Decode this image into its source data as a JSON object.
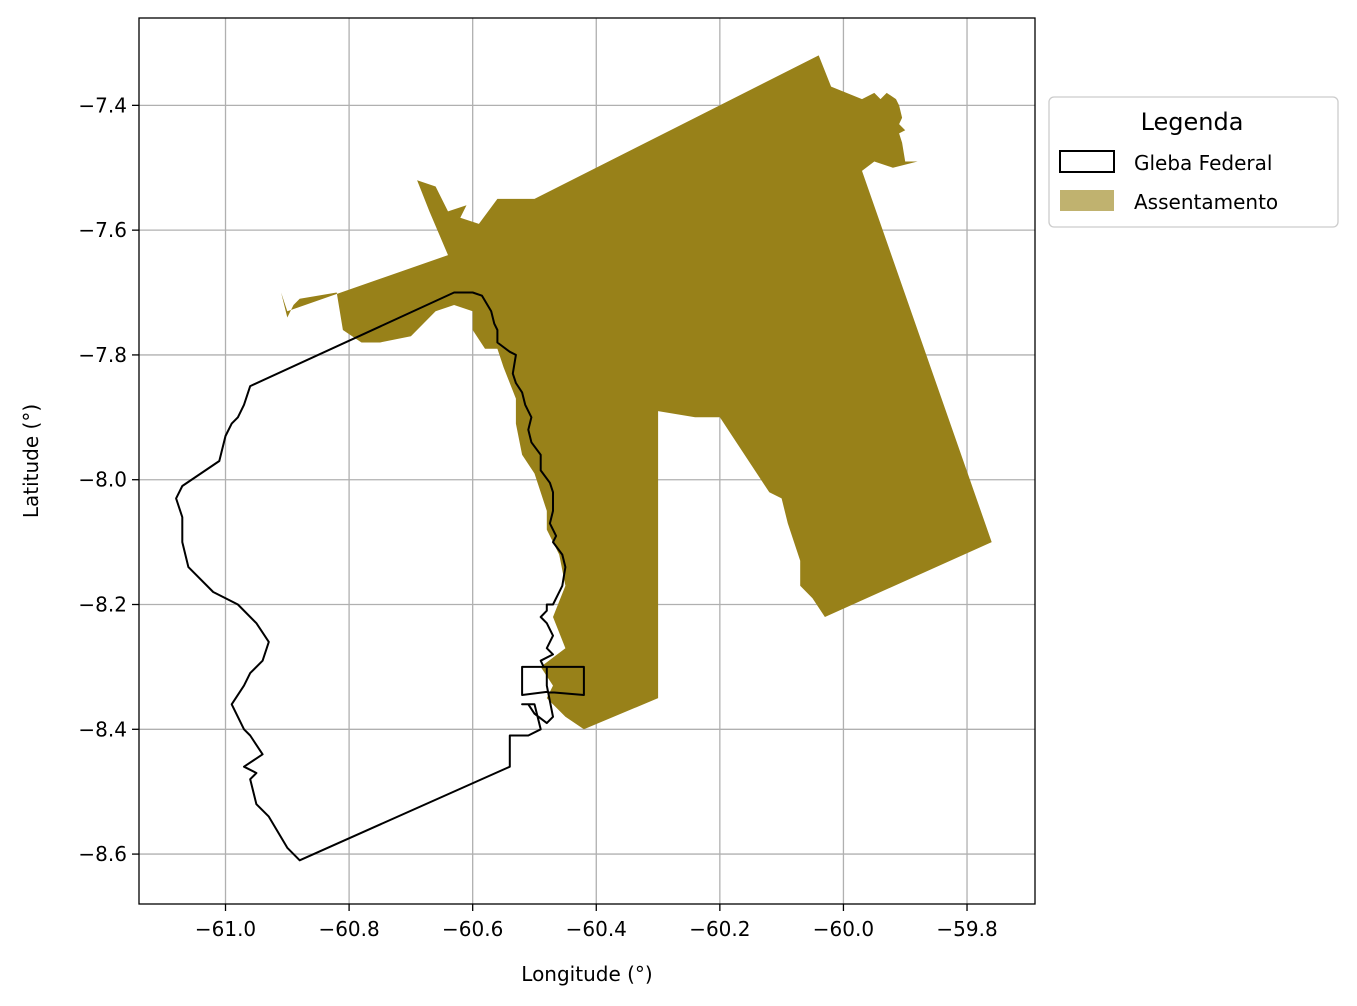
{
  "chart_data": {
    "type": "map",
    "xlabel": "Longitude (°)",
    "ylabel": "Latitude (°)",
    "xlim": [
      -61.14,
      -59.69
    ],
    "ylim": [
      -8.68,
      -7.26
    ],
    "grid": true,
    "x_ticks": [
      -61.0,
      -60.8,
      -60.6,
      -60.4,
      -60.2,
      -60.0,
      -59.8
    ],
    "y_ticks": [
      -7.4,
      -7.6,
      -7.8,
      -8.0,
      -8.2,
      -8.4,
      -8.6
    ],
    "x_tick_labels": [
      "−61.0",
      "−60.8",
      "−60.6",
      "−60.4",
      "−60.2",
      "−60.0",
      "−59.8"
    ],
    "y_tick_labels": [
      "−7.4",
      "−7.6",
      "−7.8",
      "−8.0",
      "−8.2",
      "−8.4",
      "−8.6"
    ],
    "legend": {
      "title": "Legenda",
      "placement": "outside-right-top",
      "entries": [
        {
          "label": "Gleba Federal",
          "style": "outline",
          "edge_color": "#000000",
          "fill_color": "#ffffff"
        },
        {
          "label": "Assentamento",
          "style": "fill",
          "fill_color": "#c0b26f"
        }
      ]
    },
    "series": [
      {
        "name": "Assentamento",
        "type": "polygon",
        "fill_color": "#988119",
        "coordinates": [
          [
            -60.04,
            -7.32
          ],
          [
            -60.02,
            -7.37
          ],
          [
            -59.97,
            -7.39
          ],
          [
            -59.95,
            -7.38
          ],
          [
            -59.94,
            -7.39
          ],
          [
            -59.93,
            -7.38
          ],
          [
            -59.915,
            -7.39
          ],
          [
            -59.91,
            -7.4
          ],
          [
            -59.905,
            -7.42
          ],
          [
            -59.91,
            -7.43
          ],
          [
            -59.9,
            -7.44
          ],
          [
            -59.91,
            -7.445
          ],
          [
            -59.905,
            -7.46
          ],
          [
            -59.9,
            -7.49
          ],
          [
            -59.88,
            -7.49
          ],
          [
            -59.92,
            -7.5
          ],
          [
            -59.95,
            -7.49
          ],
          [
            -59.97,
            -7.505
          ],
          [
            -59.76,
            -8.1
          ],
          [
            -60.03,
            -8.22
          ],
          [
            -60.05,
            -8.19
          ],
          [
            -60.07,
            -8.17
          ],
          [
            -60.07,
            -8.13
          ],
          [
            -60.09,
            -8.07
          ],
          [
            -60.1,
            -8.03
          ],
          [
            -60.12,
            -8.02
          ],
          [
            -60.14,
            -7.99
          ],
          [
            -60.18,
            -7.93
          ],
          [
            -60.2,
            -7.9
          ],
          [
            -60.24,
            -7.9
          ],
          [
            -60.3,
            -7.89
          ],
          [
            -60.3,
            -8.35
          ],
          [
            -60.42,
            -8.4
          ],
          [
            -60.45,
            -8.38
          ],
          [
            -60.48,
            -8.35
          ],
          [
            -60.47,
            -8.33
          ],
          [
            -60.49,
            -8.3
          ],
          [
            -60.45,
            -8.27
          ],
          [
            -60.47,
            -8.22
          ],
          [
            -60.45,
            -8.17
          ],
          [
            -60.46,
            -8.12
          ],
          [
            -60.48,
            -8.08
          ],
          [
            -60.48,
            -8.05
          ],
          [
            -60.5,
            -7.99
          ],
          [
            -60.52,
            -7.96
          ],
          [
            -60.53,
            -7.91
          ],
          [
            -60.53,
            -7.87
          ],
          [
            -60.55,
            -7.82
          ],
          [
            -60.56,
            -7.79
          ],
          [
            -60.58,
            -7.79
          ],
          [
            -60.6,
            -7.76
          ],
          [
            -60.6,
            -7.73
          ],
          [
            -60.63,
            -7.72
          ],
          [
            -60.66,
            -7.73
          ],
          [
            -60.7,
            -7.77
          ],
          [
            -60.75,
            -7.78
          ],
          [
            -60.78,
            -7.78
          ],
          [
            -60.81,
            -7.76
          ],
          [
            -60.82,
            -7.7
          ],
          [
            -60.88,
            -7.71
          ],
          [
            -60.89,
            -7.72
          ],
          [
            -60.9,
            -7.74
          ],
          [
            -60.91,
            -7.7
          ],
          [
            -60.9,
            -7.73
          ],
          [
            -60.64,
            -7.64
          ],
          [
            -60.67,
            -7.57
          ],
          [
            -60.69,
            -7.52
          ],
          [
            -60.66,
            -7.53
          ],
          [
            -60.64,
            -7.57
          ],
          [
            -60.61,
            -7.56
          ],
          [
            -60.62,
            -7.58
          ],
          [
            -60.59,
            -7.59
          ],
          [
            -60.56,
            -7.55
          ],
          [
            -60.5,
            -7.55
          ],
          [
            -60.04,
            -7.32
          ]
        ]
      },
      {
        "name": "Gleba Federal",
        "type": "polygon",
        "fill_color": "none",
        "edge_color": "#000000",
        "coordinates": [
          [
            -60.96,
            -7.85
          ],
          [
            -60.63,
            -7.7
          ],
          [
            -60.6,
            -7.7
          ],
          [
            -60.585,
            -7.705
          ],
          [
            -60.57,
            -7.73
          ],
          [
            -60.565,
            -7.75
          ],
          [
            -60.56,
            -7.76
          ],
          [
            -60.56,
            -7.78
          ],
          [
            -60.54,
            -7.795
          ],
          [
            -60.53,
            -7.8
          ],
          [
            -60.535,
            -7.83
          ],
          [
            -60.53,
            -7.845
          ],
          [
            -60.52,
            -7.86
          ],
          [
            -60.515,
            -7.88
          ],
          [
            -60.505,
            -7.9
          ],
          [
            -60.51,
            -7.92
          ],
          [
            -60.505,
            -7.94
          ],
          [
            -60.49,
            -7.96
          ],
          [
            -60.49,
            -7.985
          ],
          [
            -60.475,
            -8.005
          ],
          [
            -60.47,
            -8.02
          ],
          [
            -60.47,
            -8.05
          ],
          [
            -60.475,
            -8.07
          ],
          [
            -60.465,
            -8.09
          ],
          [
            -60.47,
            -8.1
          ],
          [
            -60.455,
            -8.12
          ],
          [
            -60.45,
            -8.14
          ],
          [
            -60.455,
            -8.17
          ],
          [
            -60.47,
            -8.2
          ],
          [
            -60.48,
            -8.2
          ],
          [
            -60.48,
            -8.21
          ],
          [
            -60.49,
            -8.22
          ],
          [
            -60.48,
            -8.23
          ],
          [
            -60.47,
            -8.25
          ],
          [
            -60.48,
            -8.27
          ],
          [
            -60.47,
            -8.28
          ],
          [
            -60.49,
            -8.29
          ],
          [
            -60.485,
            -8.3
          ],
          [
            -60.48,
            -8.3
          ],
          [
            -60.42,
            -8.3
          ],
          [
            -60.42,
            -8.345
          ],
          [
            -60.48,
            -8.34
          ],
          [
            -60.52,
            -8.345
          ],
          [
            -60.52,
            -8.3
          ],
          [
            -60.48,
            -8.3
          ],
          [
            -60.48,
            -8.33
          ],
          [
            -60.47,
            -8.38
          ],
          [
            -60.48,
            -8.39
          ],
          [
            -60.5,
            -8.375
          ],
          [
            -60.51,
            -8.36
          ],
          [
            -60.52,
            -8.36
          ],
          [
            -60.5,
            -8.36
          ],
          [
            -60.49,
            -8.4
          ],
          [
            -60.51,
            -8.41
          ],
          [
            -60.53,
            -8.41
          ],
          [
            -60.54,
            -8.41
          ],
          [
            -60.54,
            -8.46
          ],
          [
            -60.88,
            -8.61
          ],
          [
            -60.9,
            -8.59
          ],
          [
            -60.93,
            -8.54
          ],
          [
            -60.95,
            -8.52
          ],
          [
            -60.96,
            -8.48
          ],
          [
            -60.95,
            -8.47
          ],
          [
            -60.97,
            -8.46
          ],
          [
            -60.94,
            -8.44
          ],
          [
            -60.96,
            -8.41
          ],
          [
            -60.97,
            -8.4
          ],
          [
            -60.99,
            -8.36
          ],
          [
            -60.97,
            -8.33
          ],
          [
            -60.96,
            -8.31
          ],
          [
            -60.94,
            -8.29
          ],
          [
            -60.93,
            -8.26
          ],
          [
            -60.95,
            -8.23
          ],
          [
            -60.98,
            -8.2
          ],
          [
            -61.02,
            -8.18
          ],
          [
            -61.06,
            -8.14
          ],
          [
            -61.07,
            -8.1
          ],
          [
            -61.07,
            -8.06
          ],
          [
            -61.08,
            -8.03
          ],
          [
            -61.07,
            -8.01
          ],
          [
            -61.04,
            -7.99
          ],
          [
            -61.01,
            -7.97
          ],
          [
            -61.0,
            -7.93
          ],
          [
            -60.99,
            -7.91
          ],
          [
            -60.98,
            -7.9
          ],
          [
            -60.97,
            -7.88
          ],
          [
            -60.96,
            -7.85
          ]
        ]
      }
    ]
  }
}
